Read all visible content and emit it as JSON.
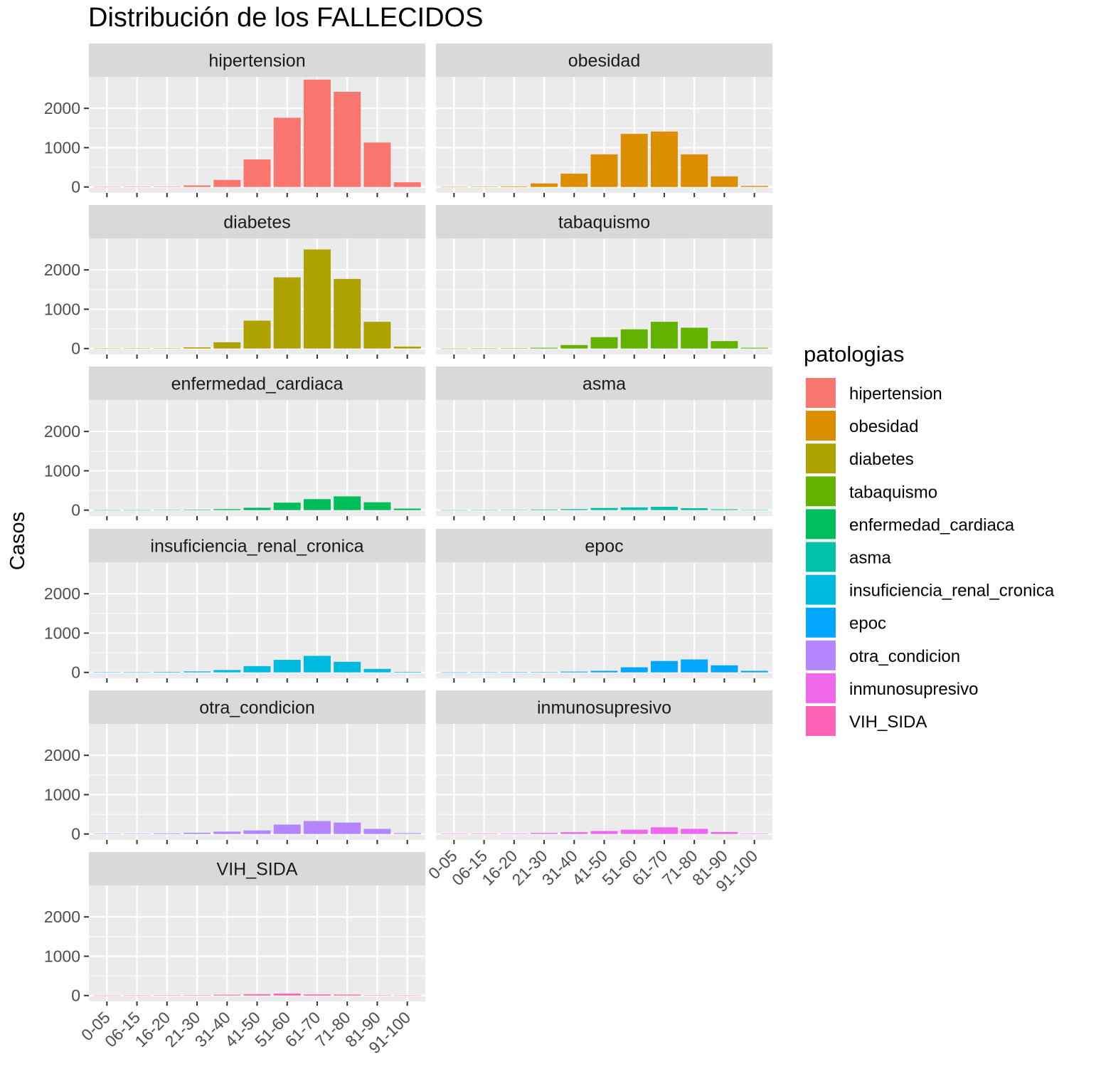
{
  "chart_data": {
    "type": "bar",
    "title": "Distribución de los FALLECIDOS",
    "xlabel": "",
    "ylabel": "Casos",
    "ylim": [
      0,
      2800
    ],
    "y_ticks": [
      0,
      1000,
      2000
    ],
    "grid": true,
    "legend_title": "patologias",
    "legend_position": "right",
    "categories": [
      "0-05",
      "06-15",
      "16-20",
      "21-30",
      "31-40",
      "41-50",
      "51-60",
      "61-70",
      "71-80",
      "81-90",
      "91-100"
    ],
    "series": [
      {
        "name": "hipertension",
        "color": "#F8766D",
        "values": [
          2,
          4,
          8,
          40,
          180,
          700,
          1760,
          2730,
          2420,
          1130,
          120
        ]
      },
      {
        "name": "obesidad",
        "color": "#DB8E00",
        "values": [
          2,
          6,
          15,
          90,
          340,
          830,
          1350,
          1410,
          830,
          270,
          25
        ]
      },
      {
        "name": "diabetes",
        "color": "#AEA200",
        "values": [
          2,
          4,
          8,
          30,
          160,
          710,
          1810,
          2520,
          1770,
          680,
          50
        ]
      },
      {
        "name": "tabaquismo",
        "color": "#64B200",
        "values": [
          1,
          2,
          5,
          20,
          90,
          290,
          490,
          680,
          530,
          190,
          20
        ]
      },
      {
        "name": "enfermedad_cardiaca",
        "color": "#00BD5C",
        "values": [
          1,
          2,
          4,
          12,
          25,
          60,
          190,
          280,
          350,
          200,
          40
        ]
      },
      {
        "name": "asma",
        "color": "#00C1A7",
        "values": [
          1,
          2,
          4,
          15,
          25,
          55,
          70,
          85,
          50,
          20,
          3
        ]
      },
      {
        "name": "insuficiencia_renal_cronica",
        "color": "#00BADE",
        "values": [
          3,
          8,
          15,
          25,
          60,
          160,
          320,
          420,
          270,
          90,
          15
        ]
      },
      {
        "name": "epoc",
        "color": "#00A6FF",
        "values": [
          1,
          2,
          3,
          8,
          20,
          40,
          130,
          290,
          330,
          180,
          40
        ]
      },
      {
        "name": "otra_condicion",
        "color": "#B385FF",
        "values": [
          5,
          8,
          15,
          30,
          60,
          90,
          240,
          330,
          290,
          130,
          20
        ]
      },
      {
        "name": "inmunosupresivo",
        "color": "#EF67EB",
        "values": [
          3,
          6,
          10,
          25,
          45,
          75,
          110,
          170,
          130,
          50,
          10
        ]
      },
      {
        "name": "VIH_SIDA",
        "color": "#FF63B6",
        "values": [
          1,
          2,
          4,
          10,
          20,
          35,
          50,
          30,
          25,
          8,
          2
        ]
      }
    ]
  }
}
